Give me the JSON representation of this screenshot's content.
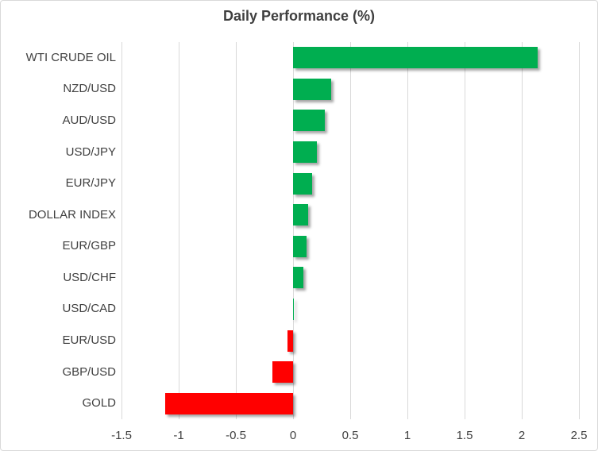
{
  "chart_data": {
    "type": "bar",
    "orientation": "horizontal",
    "title": "Daily Performance (%)",
    "categories": [
      "WTI CRUDE OIL",
      "NZD/USD",
      "AUD/USD",
      "USD/JPY",
      "EUR/JPY",
      "DOLLAR INDEX",
      "EUR/GBP",
      "USD/CHF",
      "USD/CAD",
      "EUR/USD",
      "GBP/USD",
      "GOLD"
    ],
    "values": [
      2.14,
      0.33,
      0.28,
      0.21,
      0.17,
      0.13,
      0.12,
      0.09,
      0.01,
      -0.05,
      -0.18,
      -1.12
    ],
    "xlim": [
      -1.5,
      2.5
    ],
    "x_ticks": [
      -1.5,
      -1,
      -0.5,
      0,
      0.5,
      1,
      1.5,
      2,
      2.5
    ],
    "x_tick_labels": [
      "-1.5",
      "-1",
      "-0.5",
      "0",
      "0.5",
      "1",
      "1.5",
      "2",
      "2.5"
    ],
    "grid": "vertical-on",
    "legend": "none",
    "positive_color": "#00AE50",
    "negative_color": "#FF0000",
    "text_color": "#404040",
    "gridline_color": "#D9D9D9",
    "border_color": "#D9D9D9",
    "background_color": "#FFFFFF"
  }
}
